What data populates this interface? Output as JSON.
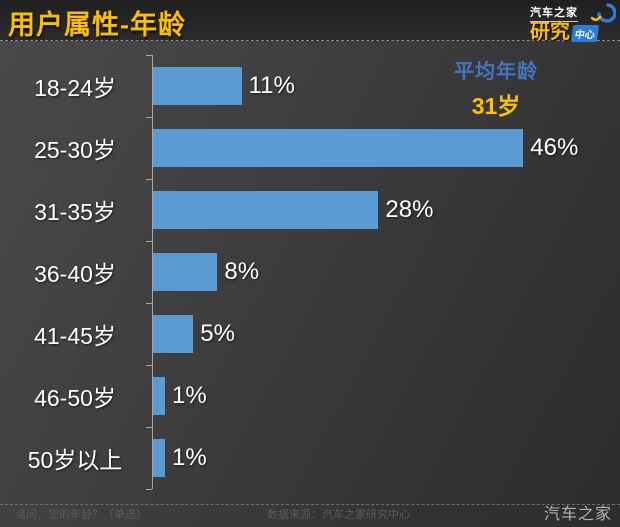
{
  "header": {
    "title": "用户属性-年龄",
    "logo": {
      "brand": "汽车之家",
      "big": "研究",
      "small": "中心"
    }
  },
  "chart_data": {
    "type": "bar",
    "orientation": "horizontal",
    "title": "用户属性-年龄",
    "categories": [
      "18-24岁",
      "25-30岁",
      "31-35岁",
      "36-40岁",
      "41-45岁",
      "46-50岁",
      "50岁以上"
    ],
    "values": [
      11,
      46,
      28,
      8,
      5,
      1,
      1
    ],
    "value_labels": [
      "11%",
      "46%",
      "28%",
      "8%",
      "5%",
      "1%",
      "1%"
    ],
    "unit": "%",
    "xlim": [
      0,
      50
    ],
    "grid": false,
    "legend": false,
    "bar_color": "#5b9bd5",
    "annotation": {
      "label": "平均年龄",
      "value": "31岁"
    }
  },
  "footer": {
    "question": "请问，您的年龄？（单选）",
    "source": "数据来源：汽车之家研究中心",
    "watermark": "汽车之家"
  },
  "colors": {
    "title_gold": "#fbbe04",
    "bar_blue": "#5b9bd5",
    "avg_label_blue": "#4472c4",
    "avg_value_gold": "#ffc000",
    "axis_gray": "#a6a6a6",
    "text_white": "#ffffff",
    "background_dark": "#3a3a3a",
    "logo_blue": "#2e7cd6"
  }
}
